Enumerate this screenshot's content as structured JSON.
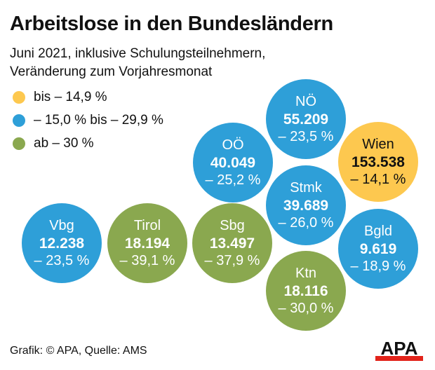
{
  "chart_data": {
    "type": "bubble",
    "title": "Arbeitslose in den Bundesländern",
    "subtitle": [
      "Juni 2021, inklusive Schulungsteilnehmern,",
      "Veränderung zum Vorjahresmonat"
    ],
    "legend": [
      {
        "label": "bis – 14,9 %",
        "color": "#fdc84f"
      },
      {
        "label": "– 15,0 % bis – 29,9 %",
        "color": "#2e9fd8"
      },
      {
        "label": "ab – 30 %",
        "color": "#8aa84f"
      }
    ],
    "items": [
      {
        "name": "NÖ",
        "value": "55.209",
        "change": "– 23,5 %",
        "cls": 1
      },
      {
        "name": "OÖ",
        "value": "40.049",
        "change": "– 25,2 %",
        "cls": 1
      },
      {
        "name": "Wien",
        "value": "153.538",
        "change": "– 14,1 %",
        "cls": 0
      },
      {
        "name": "Stmk",
        "value": "39.689",
        "change": "– 26,0 %",
        "cls": 1
      },
      {
        "name": "Vbg",
        "value": "12.238",
        "change": "– 23,5 %",
        "cls": 1
      },
      {
        "name": "Tirol",
        "value": "18.194",
        "change": "– 39,1 %",
        "cls": 2
      },
      {
        "name": "Sbg",
        "value": "13.497",
        "change": "– 37,9 %",
        "cls": 2
      },
      {
        "name": "Bgld",
        "value": "9.619",
        "change": "– 18,9 %",
        "cls": 1
      },
      {
        "name": "Ktn",
        "value": "18.116",
        "change": "– 30,0 %",
        "cls": 2
      }
    ],
    "source": "Grafik: © APA, Quelle: AMS"
  },
  "logo": "APA"
}
